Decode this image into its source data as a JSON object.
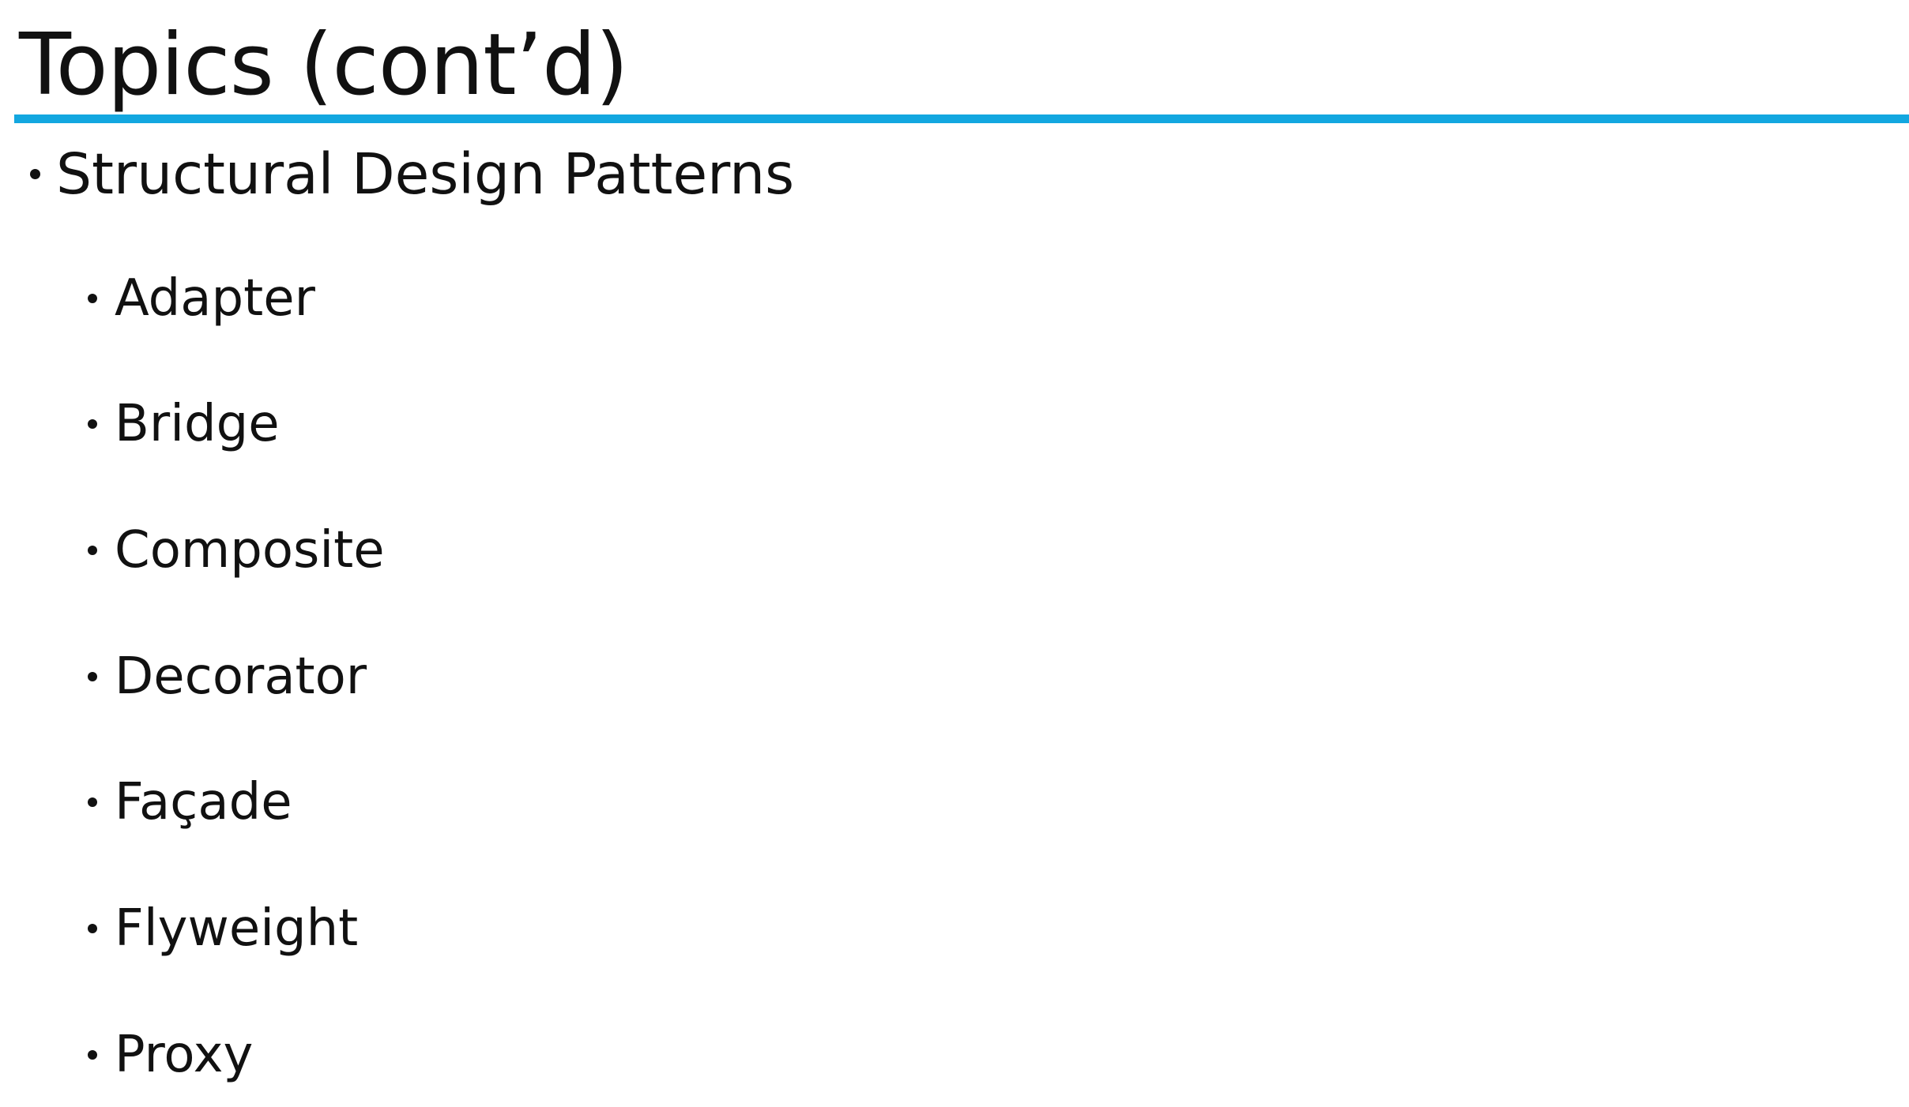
{
  "slide": {
    "title": "Topics (cont’d)",
    "accent_color": "#13a7e0",
    "main_bullet": {
      "label": "Structural Design Patterns"
    },
    "sub_bullets": [
      {
        "label": "Adapter"
      },
      {
        "label": "Bridge"
      },
      {
        "label": "Composite"
      },
      {
        "label": "Decorator"
      },
      {
        "label": "Façade"
      },
      {
        "label": "Flyweight"
      },
      {
        "label": "Proxy"
      }
    ]
  }
}
